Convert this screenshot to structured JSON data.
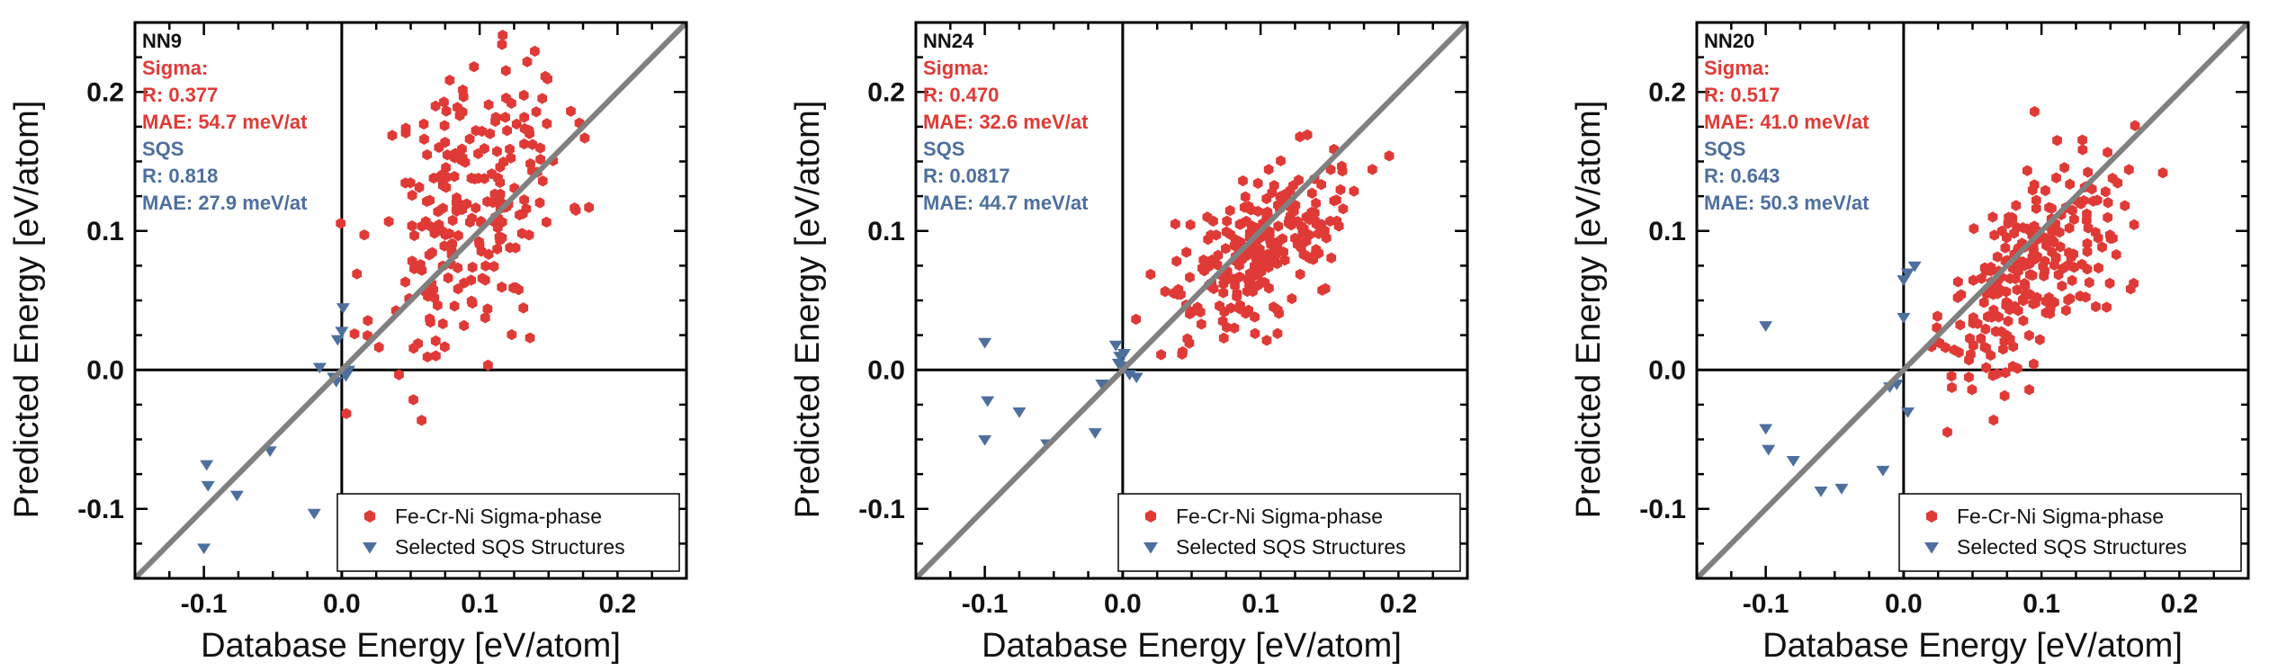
{
  "figure": {
    "colors": {
      "sigma": "#e03a36",
      "sqs": "#4d6f9e",
      "diagonal": "#808080",
      "axis": "#000000"
    }
  },
  "chart_data": [
    {
      "type": "scatter",
      "panel_label": "NN9",
      "xlabel": "Database Energy [eV/atom]",
      "ylabel": "Predicted Energy [eV/atom]",
      "xlim": [
        -0.15,
        0.25
      ],
      "ylim": [
        -0.15,
        0.25
      ],
      "xticks": [
        -0.1,
        0.0,
        0.1,
        0.2
      ],
      "xtick_labels": [
        "-0.1",
        "0.0",
        "0.1",
        "0.2"
      ],
      "yticks": [
        -0.1,
        0.0,
        0.1,
        0.2
      ],
      "ytick_labels": [
        "-0.1",
        "0.0",
        "0.1",
        "0.2"
      ],
      "legend_position": "bottom-right",
      "annotations": [
        {
          "text": "NN9",
          "color": "#111111"
        },
        {
          "text": "Sigma:",
          "color": "#e03a36"
        },
        {
          "text": "R: 0.377",
          "color": "#e03a36"
        },
        {
          "text": "MAE: 54.7 meV/at",
          "color": "#e03a36"
        },
        {
          "text": "SQS",
          "color": "#4d6f9e"
        },
        {
          "text": "R: 0.818",
          "color": "#4d6f9e"
        },
        {
          "text": "MAE: 27.9 meV/at",
          "color": "#4d6f9e"
        }
      ],
      "series": [
        {
          "name": "Fe-Cr-Ni Sigma-phase",
          "marker": "hexagon",
          "color": "#e03a36",
          "points": {
            "gen": {
              "seed": 11,
              "n": 230,
              "cx": 0.095,
              "cy": 0.12,
              "sx": 0.034,
              "sy": 0.058,
              "rho": 0.38,
              "xmin": -0.005,
              "xmax": 0.205,
              "ymin": -0.04,
              "ymax": 0.25
            }
          }
        },
        {
          "name": "Selected SQS Structures",
          "marker": "triangle-down",
          "color": "#4d6f9e",
          "points": [
            [
              -0.098,
              -0.068
            ],
            [
              -0.097,
              -0.083
            ],
            [
              -0.1,
              -0.128
            ],
            [
              -0.076,
              -0.09
            ],
            [
              -0.052,
              -0.058
            ],
            [
              -0.02,
              -0.103
            ],
            [
              -0.016,
              0.002
            ],
            [
              -0.006,
              -0.005
            ],
            [
              -0.004,
              -0.008
            ],
            [
              -0.003,
              0.022
            ],
            [
              0.0,
              0.028
            ],
            [
              0.001,
              0.045
            ],
            [
              0.003,
              -0.004
            ],
            [
              0.005,
              0.0
            ]
          ]
        }
      ]
    },
    {
      "type": "scatter",
      "panel_label": "NN24",
      "xlabel": "Database Energy [eV/atom]",
      "ylabel": "Predicted Energy [eV/atom]",
      "xlim": [
        -0.15,
        0.25
      ],
      "ylim": [
        -0.15,
        0.25
      ],
      "xticks": [
        -0.1,
        0.0,
        0.1,
        0.2
      ],
      "xtick_labels": [
        "-0.1",
        "0.0",
        "0.1",
        "0.2"
      ],
      "yticks": [
        -0.1,
        0.0,
        0.1,
        0.2
      ],
      "ytick_labels": [
        "-0.1",
        "0.0",
        "0.1",
        "0.2"
      ],
      "legend_position": "bottom-right",
      "annotations": [
        {
          "text": "NN24",
          "color": "#111111"
        },
        {
          "text": "Sigma:",
          "color": "#e03a36"
        },
        {
          "text": "R: 0.470",
          "color": "#e03a36"
        },
        {
          "text": "MAE: 32.6 meV/at",
          "color": "#e03a36"
        },
        {
          "text": "SQS",
          "color": "#4d6f9e"
        },
        {
          "text": "R: 0.0817",
          "color": "#4d6f9e"
        },
        {
          "text": "MAE: 44.7 meV/at",
          "color": "#4d6f9e"
        }
      ],
      "series": [
        {
          "name": "Fe-Cr-Ni Sigma-phase",
          "marker": "hexagon",
          "color": "#e03a36",
          "points": {
            "gen": {
              "seed": 24,
              "n": 240,
              "cx": 0.095,
              "cy": 0.082,
              "sx": 0.032,
              "sy": 0.032,
              "rho": 0.5,
              "xmin": 0.0,
              "xmax": 0.2,
              "ymin": 0.01,
              "ymax": 0.18
            }
          }
        },
        {
          "name": "Selected SQS Structures",
          "marker": "triangle-down",
          "color": "#4d6f9e",
          "points": [
            [
              -0.1,
              0.02
            ],
            [
              -0.098,
              -0.022
            ],
            [
              -0.1,
              -0.05
            ],
            [
              -0.075,
              -0.03
            ],
            [
              -0.055,
              -0.053
            ],
            [
              -0.02,
              -0.045
            ],
            [
              -0.015,
              -0.01
            ],
            [
              -0.005,
              0.018
            ],
            [
              -0.003,
              0.005
            ],
            [
              -0.002,
              0.01
            ],
            [
              0.0,
              0.003
            ],
            [
              0.001,
              0.012
            ],
            [
              0.005,
              -0.003
            ],
            [
              0.01,
              -0.005
            ]
          ]
        }
      ]
    },
    {
      "type": "scatter",
      "panel_label": "NN20",
      "xlabel": "Database Energy [eV/atom]",
      "ylabel": "Predicted Energy [eV/atom]",
      "xlim": [
        -0.15,
        0.25
      ],
      "ylim": [
        -0.15,
        0.25
      ],
      "xticks": [
        -0.1,
        0.0,
        0.1,
        0.2
      ],
      "xtick_labels": [
        "-0.1",
        "0.0",
        "0.1",
        "0.2"
      ],
      "yticks": [
        -0.1,
        0.0,
        0.1,
        0.2
      ],
      "ytick_labels": [
        "-0.1",
        "0.0",
        "0.1",
        "0.2"
      ],
      "legend_position": "bottom-right",
      "annotations": [
        {
          "text": "NN20",
          "color": "#111111"
        },
        {
          "text": "Sigma:",
          "color": "#e03a36"
        },
        {
          "text": "R: 0.517",
          "color": "#e03a36"
        },
        {
          "text": "MAE: 41.0 meV/at",
          "color": "#e03a36"
        },
        {
          "text": "SQS",
          "color": "#4d6f9e"
        },
        {
          "text": "R: 0.643",
          "color": "#4d6f9e"
        },
        {
          "text": "MAE: 50.3 meV/at",
          "color": "#4d6f9e"
        }
      ],
      "series": [
        {
          "name": "Fe-Cr-Ni Sigma-phase",
          "marker": "hexagon",
          "color": "#e03a36",
          "points": {
            "gen": {
              "seed": 20,
              "n": 240,
              "cx": 0.095,
              "cy": 0.075,
              "sx": 0.033,
              "sy": 0.045,
              "rho": 0.55,
              "xmin": 0.0,
              "xmax": 0.205,
              "ymin": -0.045,
              "ymax": 0.205
            }
          }
        },
        {
          "name": "Selected SQS Structures",
          "marker": "triangle-down",
          "color": "#4d6f9e",
          "points": [
            [
              -0.1,
              0.032
            ],
            [
              -0.1,
              -0.042
            ],
            [
              -0.098,
              -0.057
            ],
            [
              -0.08,
              -0.065
            ],
            [
              -0.06,
              -0.087
            ],
            [
              -0.045,
              -0.085
            ],
            [
              -0.015,
              -0.072
            ],
            [
              -0.01,
              -0.012
            ],
            [
              -0.005,
              -0.01
            ],
            [
              0.0,
              0.038
            ],
            [
              0.0,
              0.065
            ],
            [
              0.003,
              0.07
            ],
            [
              0.008,
              0.075
            ],
            [
              0.003,
              -0.03
            ]
          ]
        }
      ]
    }
  ]
}
